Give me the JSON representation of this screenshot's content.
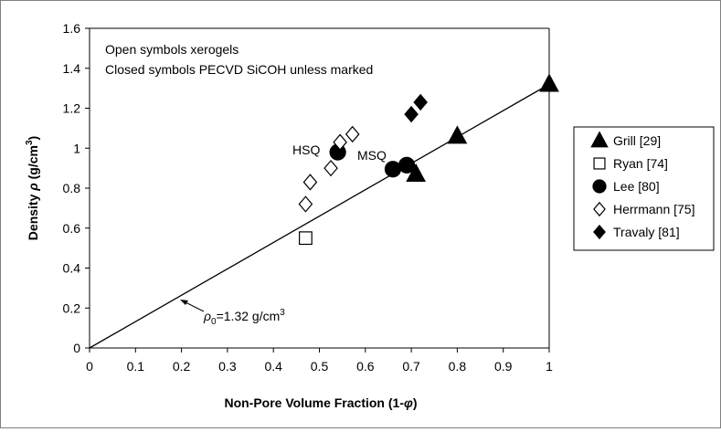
{
  "chart_data": {
    "type": "scatter",
    "xlabel": "Non-Pore Volume Fraction (1-φ)",
    "ylabel": "Density  ρ (g/cm³)",
    "ylabel_parts": {
      "pre": "Density  ",
      "rho": "ρ",
      "unit": " (g/cm",
      "exp": "3",
      "close": ")"
    },
    "xlabel_parts": {
      "pre": "Non-Pore Volume Fraction (1-",
      "phi": "φ",
      "close": ")"
    },
    "xlim": [
      0,
      1
    ],
    "ylim": [
      0,
      1.6
    ],
    "x_ticks": [
      "0",
      "0.1",
      "0.2",
      "0.3",
      "0.4",
      "0.5",
      "0.6",
      "0.7",
      "0.8",
      "0.9",
      "1"
    ],
    "y_ticks": [
      "0",
      "0.2",
      "0.4",
      "0.6",
      "0.8",
      "1",
      "1.2",
      "1.4",
      "1.6"
    ],
    "grid": false,
    "legend_position": "right",
    "annotations": {
      "note_line1": "Open symbols xerogels",
      "note_line2": "Closed symbols PECVD SiCOH unless marked",
      "hsq": "HSQ",
      "msq": "MSQ",
      "fit_label": "ρ0=1.32 g/cm3",
      "fit_label_parts": {
        "rho": "ρ",
        "sub": "0",
        "mid": "=1.32 g/cm",
        "exp": "3"
      }
    },
    "fit_line": {
      "slope": 1.32,
      "x": [
        0,
        1
      ],
      "y": [
        0,
        1.32
      ]
    },
    "series": [
      {
        "name": "Grill [29]",
        "marker": "triangle",
        "filled": true,
        "x": [
          0.71,
          0.8,
          1.0
        ],
        "y": [
          0.87,
          1.06,
          1.32
        ]
      },
      {
        "name": "Ryan [74]",
        "marker": "square",
        "filled": false,
        "x": [
          0.47
        ],
        "y": [
          0.55
        ]
      },
      {
        "name": "Lee [80]",
        "marker": "circle",
        "filled": true,
        "x": [
          0.54,
          0.66,
          0.69
        ],
        "y": [
          0.98,
          0.895,
          0.915
        ]
      },
      {
        "name": "Herrmann [75]",
        "marker": "diamond",
        "filled": false,
        "x": [
          0.47,
          0.48,
          0.525,
          0.545,
          0.572
        ],
        "y": [
          0.72,
          0.83,
          0.9,
          1.03,
          1.07
        ]
      },
      {
        "name": "Travaly [81]",
        "marker": "diamond",
        "filled": true,
        "x": [
          0.7,
          0.72
        ],
        "y": [
          1.17,
          1.23
        ]
      }
    ],
    "colors": {
      "marker": "#000000",
      "axis": "#000000",
      "frame": "#808080"
    }
  }
}
